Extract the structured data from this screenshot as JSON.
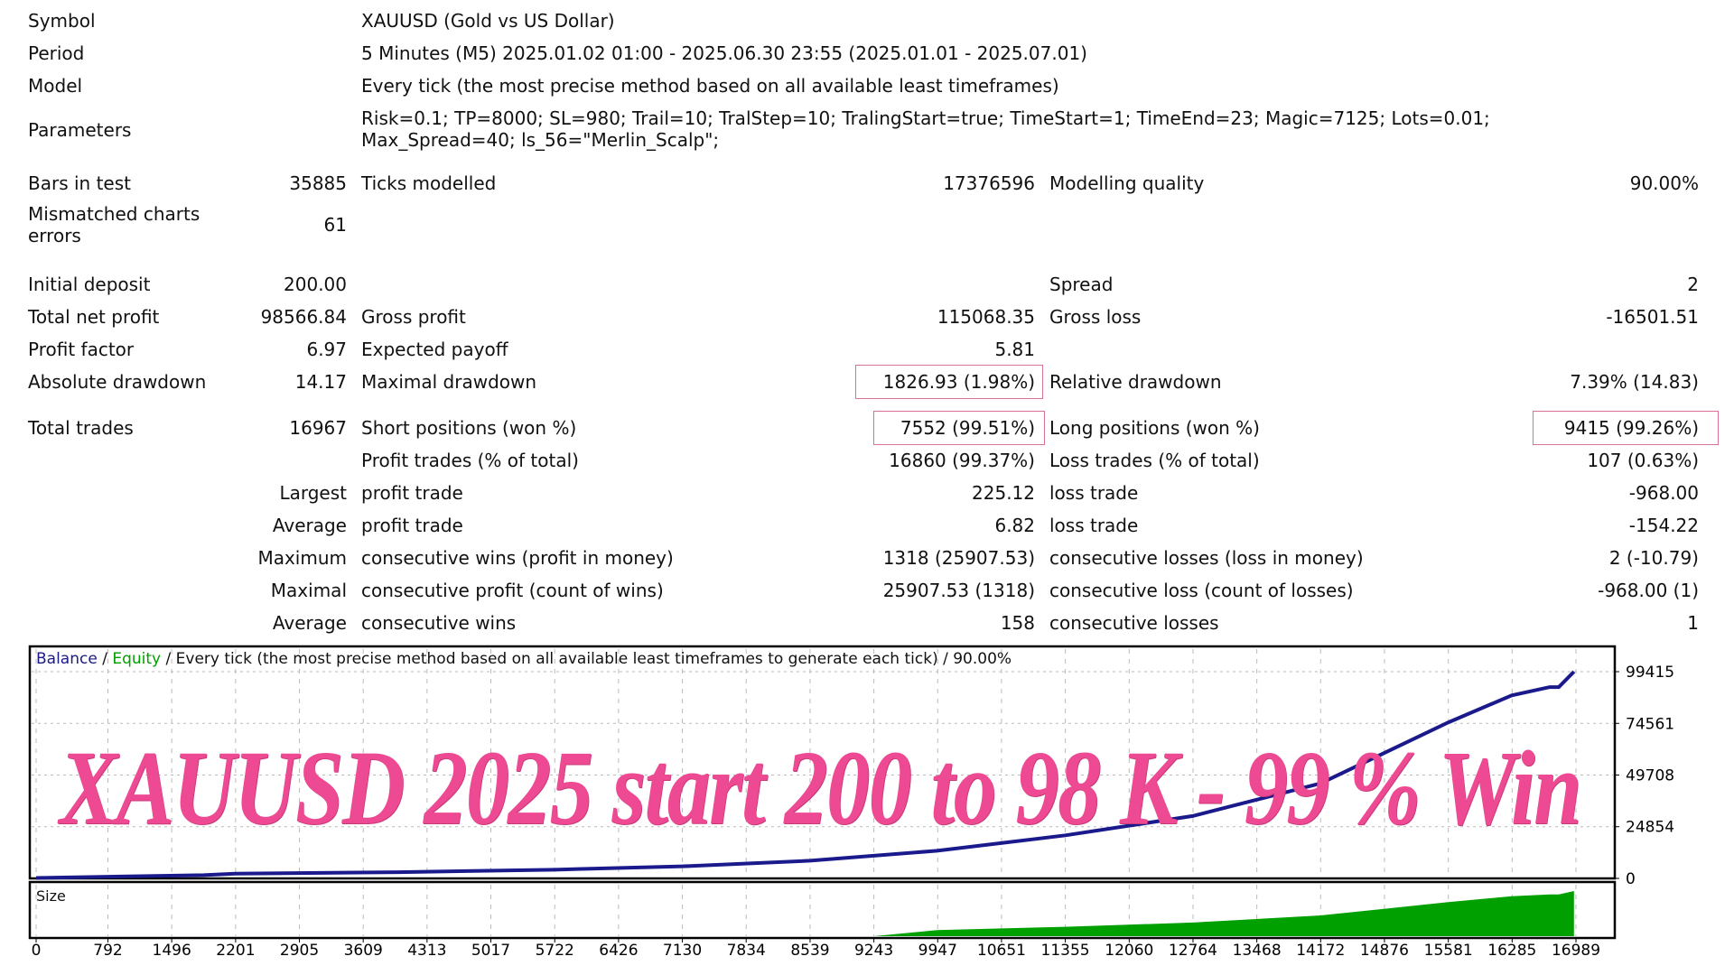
{
  "header": {
    "symbol_label": "Symbol",
    "symbol_value": "XAUUSD (Gold vs US Dollar)",
    "period_label": "Period",
    "period_value": "5 Minutes (M5) 2025.01.02 01:00 - 2025.06.30 23:55 (2025.01.01 - 2025.07.01)",
    "model_label": "Model",
    "model_value": "Every tick (the most precise method based on all available least timeframes)",
    "parameters_label": "Parameters",
    "parameters_line1": "Risk=0.1; TP=8000; SL=980; Trail=10; TralStep=10; TralingStart=true; TimeStart=1; TimeEnd=23; Magic=7125; Lots=0.01;",
    "parameters_line2": "Max_Spread=40; ls_56=\"Merlin_Scalp\";"
  },
  "stats": [
    [
      "Bars in test",
      "35885",
      "Ticks modelled",
      "17376596",
      "Modelling quality",
      "90.00%"
    ],
    [
      "Mismatched charts errors",
      "61",
      "",
      "",
      "",
      ""
    ],
    [
      "Initial deposit",
      "200.00",
      "",
      "",
      "Spread",
      "2"
    ],
    [
      "Total net profit",
      "98566.84",
      "Gross profit",
      "115068.35",
      "Gross loss",
      "-16501.51"
    ],
    [
      "Profit factor",
      "6.97",
      "Expected payoff",
      "5.81",
      "",
      ""
    ],
    [
      "Absolute drawdown",
      "14.17",
      "Maximal drawdown",
      "1826.93 (1.98%)",
      "Relative drawdown",
      "7.39% (14.83)"
    ],
    [
      "Total trades",
      "16967",
      "Short positions (won %)",
      "7552 (99.51%)",
      "Long positions (won %)",
      "9415 (99.26%)"
    ],
    [
      "",
      "",
      "Profit trades (% of total)",
      "16860 (99.37%)",
      "Loss trades (% of total)",
      "107 (0.63%)"
    ],
    [
      "",
      "Largest",
      "profit trade",
      "225.12",
      "loss trade",
      "-968.00"
    ],
    [
      "",
      "Average",
      "profit trade",
      "6.82",
      "loss trade",
      "-154.22"
    ],
    [
      "",
      "Maximum",
      "consecutive wins (profit in money)",
      "1318 (25907.53)",
      "consecutive losses (loss in money)",
      "2 (-10.79)"
    ],
    [
      "",
      "Maximal",
      "consecutive profit (count of wins)",
      "25907.53 (1318)",
      "consecutive loss (count of losses)",
      "-968.00 (1)"
    ],
    [
      "",
      "Average",
      "consecutive wins",
      "158",
      "consecutive losses",
      "1"
    ]
  ],
  "highlight_color": "#d9709a",
  "overlay_text": "XAUUSD 2025 start 200 to 98 K - 99 % Win",
  "overlay_color": "#ee4a93",
  "chart_data": {
    "type": "line",
    "legend": {
      "balance": "Balance",
      "equity": "Equity",
      "separator": " / ",
      "description": " / Every tick (the most precise method based on all available least timeframes to generate each tick) / 90.00%"
    },
    "series": [
      {
        "name": "Balance",
        "color": "#1a1a8c",
        "x": [
          0,
          1850,
          2200,
          4000,
          5720,
          7130,
          8540,
          9940,
          11355,
          12760,
          14172,
          15580,
          16280,
          16700,
          16800,
          16967
        ],
        "y": [
          200,
          1600,
          2300,
          3000,
          4200,
          5800,
          8500,
          13300,
          20700,
          30000,
          45700,
          75000,
          88000,
          92000,
          92000,
          99415
        ]
      }
    ],
    "size_pane_label": "Size",
    "size_color": "#00a000",
    "y_ticks": [
      "99415",
      "74561",
      "49708",
      "24854",
      "0"
    ],
    "ylim": [
      0,
      99415
    ],
    "x_ticks": [
      "0",
      "792",
      "1496",
      "2201",
      "2905",
      "3609",
      "4313",
      "5017",
      "5722",
      "6426",
      "7130",
      "7834",
      "8539",
      "9243",
      "9947",
      "10651",
      "11355",
      "12060",
      "12764",
      "13468",
      "14172",
      "14876",
      "15581",
      "16285",
      "16989"
    ],
    "xlim": [
      0,
      16989
    ],
    "grid": true
  }
}
